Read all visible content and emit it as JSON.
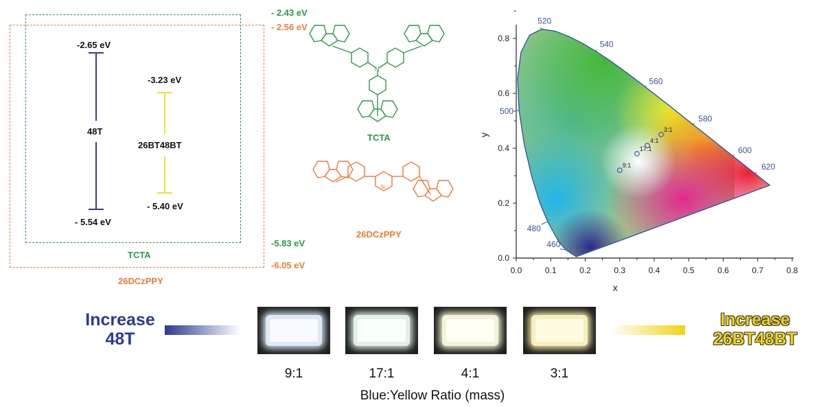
{
  "energy": {
    "tcta_lumo": "- 2.43 eV",
    "dczppy_lumo": "- 2.56 eV",
    "tcta_homo": "-5.83 eV",
    "dczppy_homo": "-6.05 eV",
    "t48_lumo": "-2.65 eV",
    "t48_homo": "- 5.54 eV",
    "t48_label": "48T",
    "bt_lumo": "-3.23 eV",
    "bt_homo": "- 5.40 eV",
    "bt_label": "26BT48BT",
    "tcta_box_label": "TCTA",
    "dczppy_box_label": "26DCzPPY"
  },
  "structures": {
    "tcta_name": "TCTA",
    "dczppy_name": "26DCzPPY",
    "n_atom": "N"
  },
  "chart_data": {
    "type": "scatter",
    "title": "",
    "xlabel": "x",
    "ylabel": "y",
    "xlim": [
      0.0,
      0.8
    ],
    "ylim": [
      0.0,
      0.85
    ],
    "x_ticks": [
      "0.0",
      "0.1",
      "0.2",
      "0.3",
      "0.4",
      "0.5",
      "0.6",
      "0.7",
      "0.8"
    ],
    "y_ticks": [
      "0.0",
      "0.2",
      "0.4",
      "0.6",
      "0.8"
    ],
    "wavelength_labels": [
      {
        "text": "460",
        "x": 0.144,
        "y": 0.03
      },
      {
        "text": "480",
        "x": 0.091,
        "y": 0.133
      },
      {
        "text": "500",
        "x": 0.008,
        "y": 0.538
      },
      {
        "text": "520",
        "x": 0.074,
        "y": 0.834
      },
      {
        "text": "540",
        "x": 0.23,
        "y": 0.754
      },
      {
        "text": "560",
        "x": 0.373,
        "y": 0.624
      },
      {
        "text": "580",
        "x": 0.512,
        "y": 0.487
      },
      {
        "text": "600",
        "x": 0.627,
        "y": 0.373
      },
      {
        "text": "620",
        "x": 0.691,
        "y": 0.308
      }
    ],
    "points": [
      {
        "label": "9:1",
        "x": 0.3,
        "y": 0.32
      },
      {
        "label": "17:1",
        "x": 0.35,
        "y": 0.38
      },
      {
        "label": "4:1",
        "x": 0.38,
        "y": 0.41
      },
      {
        "label": "3:1",
        "x": 0.42,
        "y": 0.45
      }
    ],
    "colors": {
      "locus": "#3a52a4",
      "points": "#3a52a4",
      "axis": "#222222"
    }
  },
  "bottom": {
    "left_text_1": "Increase",
    "left_text_2": "48T",
    "right_text_1": "Increase",
    "right_text_2": "26BT48BT",
    "ratios": [
      "9:1",
      "17:1",
      "4:1",
      "3:1"
    ],
    "caption": "Blue:Yellow Ratio (mass)",
    "left_color": "#2b3a93",
    "right_color": "#f2d313"
  }
}
